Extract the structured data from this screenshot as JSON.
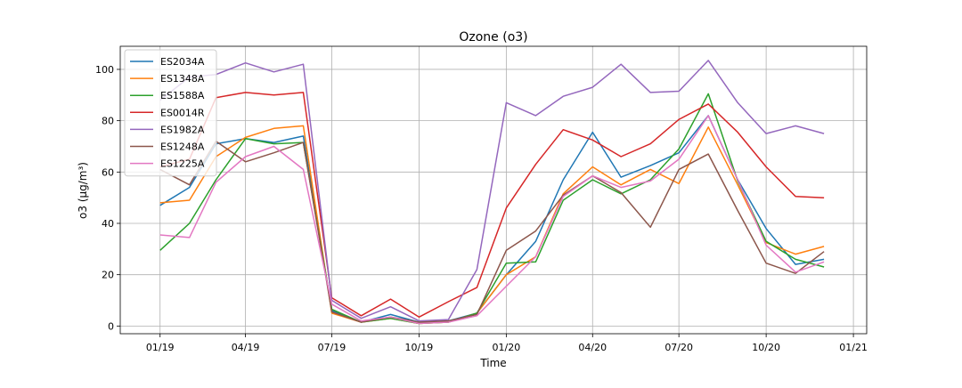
{
  "chart_data": {
    "type": "line",
    "title": "Ozone (o3)",
    "xlabel": "Time",
    "ylabel": "o3 (µg/m³)",
    "x": [
      "2019-01",
      "2019-02",
      "2019-03",
      "2019-04",
      "2019-05",
      "2019-06",
      "2019-07",
      "2019-08",
      "2019-09",
      "2019-10",
      "2019-11",
      "2019-12",
      "2020-01",
      "2020-02",
      "2020-03",
      "2020-04",
      "2020-05",
      "2020-06",
      "2020-07",
      "2020-08",
      "2020-09",
      "2020-10",
      "2020-11",
      "2020-12"
    ],
    "xlim": [
      "2018-11-20",
      "2021-01-15"
    ],
    "ylim": [
      -3,
      109
    ],
    "xticks": [
      {
        "date": "2019-01-01",
        "label": "01/19"
      },
      {
        "date": "2019-04-01",
        "label": "04/19"
      },
      {
        "date": "2019-07-01",
        "label": "07/19"
      },
      {
        "date": "2019-10-01",
        "label": "10/19"
      },
      {
        "date": "2020-01-01",
        "label": "01/20"
      },
      {
        "date": "2020-04-01",
        "label": "04/20"
      },
      {
        "date": "2020-07-01",
        "label": "07/20"
      },
      {
        "date": "2020-10-01",
        "label": "10/20"
      },
      {
        "date": "2021-01-01",
        "label": "01/21"
      }
    ],
    "yticks": [
      0,
      20,
      40,
      60,
      80,
      100
    ],
    "grid": true,
    "legend_position": "top-left",
    "series": [
      {
        "name": "ES2034A",
        "color": "#1f77b4",
        "values": [
          47.0,
          54.0,
          71.0,
          73.0,
          71.5,
          74.0,
          6.0,
          1.5,
          4.5,
          1.5,
          2.0,
          5.0,
          20.0,
          33.0,
          57.0,
          75.5,
          58.0,
          62.5,
          67.5,
          82.0,
          57.0,
          38.0,
          24.0,
          26.0
        ]
      },
      {
        "name": "ES1348A",
        "color": "#ff7f0e",
        "values": [
          48.0,
          49.0,
          66.0,
          73.5,
          77.0,
          78.0,
          5.0,
          1.5,
          3.0,
          1.0,
          1.5,
          5.0,
          20.0,
          27.0,
          51.5,
          62.0,
          55.0,
          61.0,
          55.5,
          77.5,
          55.0,
          32.5,
          28.0,
          31.0
        ]
      },
      {
        "name": "ES1588A",
        "color": "#2ca02c",
        "values": [
          29.5,
          40.0,
          57.0,
          73.0,
          71.0,
          71.5,
          6.5,
          1.5,
          3.0,
          1.0,
          1.5,
          5.0,
          24.5,
          25.0,
          49.0,
          57.0,
          51.5,
          57.0,
          69.0,
          90.5,
          56.5,
          33.0,
          26.0,
          23.0
        ]
      },
      {
        "name": "ES0014R",
        "color": "#d62728",
        "values": [
          62.0,
          65.0,
          89.0,
          91.0,
          90.0,
          91.0,
          11.0,
          4.0,
          10.5,
          3.5,
          9.5,
          15.0,
          46.0,
          63.0,
          76.5,
          72.5,
          66.0,
          71.0,
          80.5,
          86.5,
          75.5,
          62.0,
          50.5,
          50.0
        ]
      },
      {
        "name": "ES1982A",
        "color": "#9467bd",
        "values": [
          88.0,
          97.0,
          98.0,
          102.5,
          99.0,
          102.0,
          10.0,
          3.0,
          7.5,
          2.0,
          2.5,
          22.0,
          87.0,
          82.0,
          89.5,
          93.0,
          102.0,
          91.0,
          91.5,
          103.5,
          87.0,
          75.0,
          78.0,
          75.0
        ]
      },
      {
        "name": "ES1248A",
        "color": "#8c564b",
        "values": [
          61.0,
          55.0,
          72.0,
          64.0,
          67.5,
          71.5,
          5.5,
          1.5,
          3.5,
          1.5,
          2.0,
          4.5,
          29.5,
          37.0,
          51.0,
          58.5,
          52.0,
          38.5,
          61.0,
          67.0,
          45.0,
          24.5,
          20.5,
          29.0
        ]
      },
      {
        "name": "ES1225A",
        "color": "#e377c2",
        "values": [
          35.5,
          34.5,
          56.0,
          66.0,
          70.0,
          61.0,
          8.5,
          2.0,
          3.5,
          1.0,
          1.5,
          4.0,
          15.5,
          27.0,
          50.5,
          58.5,
          54.0,
          56.5,
          65.0,
          82.0,
          57.0,
          31.5,
          21.0,
          25.0
        ]
      }
    ]
  }
}
